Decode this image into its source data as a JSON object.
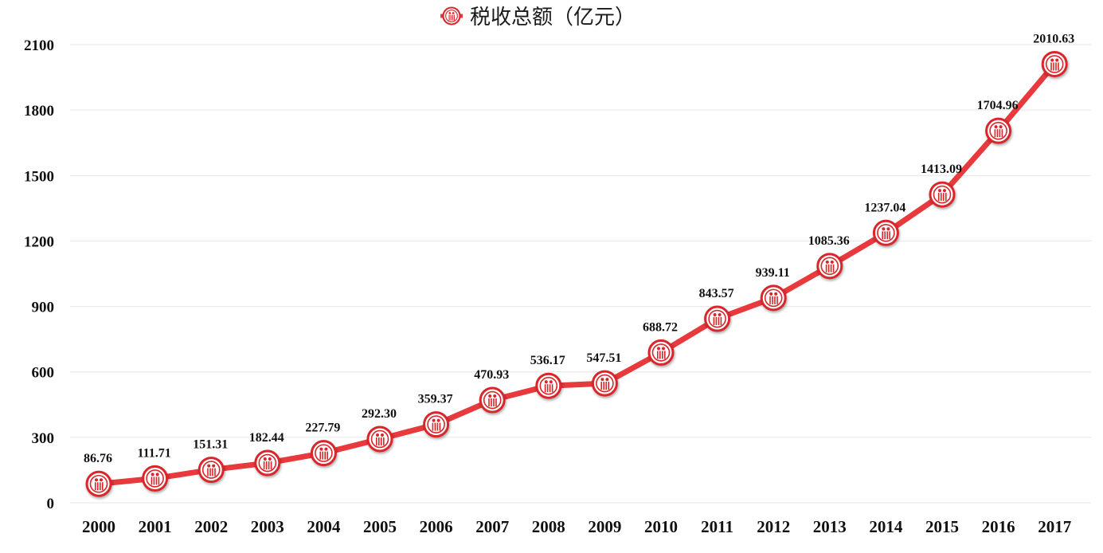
{
  "chart_data": {
    "type": "line",
    "title": "",
    "xlabel": "",
    "ylabel": "",
    "categories": [
      "2000",
      "2001",
      "2002",
      "2003",
      "2004",
      "2005",
      "2006",
      "2007",
      "2008",
      "2009",
      "2010",
      "2011",
      "2012",
      "2013",
      "2014",
      "2015",
      "2016",
      "2017"
    ],
    "series": [
      {
        "name": "税收总额（亿元）",
        "values": [
          86.76,
          111.71,
          151.31,
          182.44,
          227.79,
          292.3,
          359.37,
          470.93,
          536.17,
          547.51,
          688.72,
          843.57,
          939.11,
          1085.36,
          1237.04,
          1413.09,
          1704.96,
          2010.63
        ],
        "value_labels": [
          "86.76",
          "111.71",
          "151.31",
          "182.44",
          "227.79",
          "292.30",
          "359.37",
          "470.93",
          "536.17",
          "547.51",
          "688.72",
          "843.57",
          "939.11",
          "1085.36",
          "1237.04",
          "1413.09",
          "1704.96",
          "2010.63"
        ]
      }
    ],
    "ylim": [
      0,
      2100
    ],
    "yticks": [
      "0",
      "300",
      "600",
      "900",
      "1200",
      "1500",
      "1800",
      "2100"
    ],
    "grid": true,
    "legend_position": "top",
    "colors": {
      "line": "#e8393d",
      "marker": "#d9262b",
      "grid": "#e6e6e6"
    },
    "marker_icon": "tax-emblem-icon"
  }
}
